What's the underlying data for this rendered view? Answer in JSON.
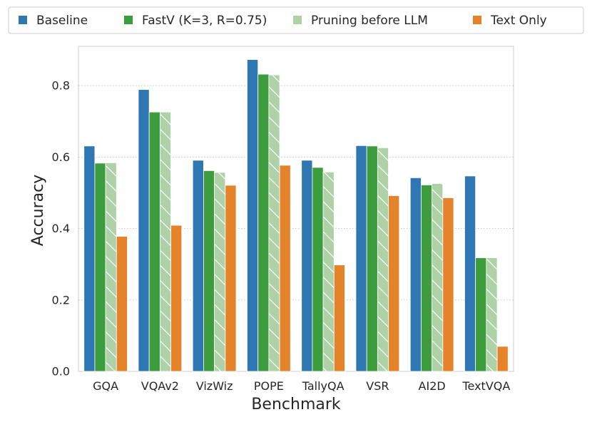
{
  "chart_data": {
    "type": "bar",
    "title": "",
    "xlabel": "Benchmark",
    "ylabel": "Accuracy",
    "ylim": [
      0,
      0.91
    ],
    "yticks": [
      0.0,
      0.2,
      0.4,
      0.6,
      0.8
    ],
    "ytick_labels": [
      "0.0",
      "0.2",
      "0.4",
      "0.6",
      "0.8"
    ],
    "grid": "y-dotted",
    "legend_position": "top",
    "categories": [
      "GQA",
      "VQAv2",
      "VizWiz",
      "POPE",
      "TallyQA",
      "VSR",
      "AI2D",
      "TextVQA"
    ],
    "series": [
      {
        "name": "Baseline",
        "legend_text": "Baseline",
        "color": "#2f77b3",
        "hatch": false,
        "values": [
          0.631,
          0.789,
          0.591,
          0.873,
          0.591,
          0.632,
          0.542,
          0.547
        ]
      },
      {
        "name": "FastV",
        "legend_text": "FastV (K=3, R=0.75)",
        "color": "#3c9c3e",
        "hatch": false,
        "values": [
          0.583,
          0.726,
          0.562,
          0.832,
          0.571,
          0.631,
          0.522,
          0.318
        ]
      },
      {
        "name": "Pruning before LLM",
        "legend_text": "Pruning before LLM",
        "color": "#aed1a8",
        "hatch": true,
        "values": [
          0.584,
          0.726,
          0.557,
          0.83,
          0.558,
          0.626,
          0.526,
          0.318
        ]
      },
      {
        "name": "Text Only",
        "legend_text": "Text Only",
        "color": "#e5832b",
        "hatch": false,
        "values": [
          0.378,
          0.409,
          0.521,
          0.577,
          0.298,
          0.492,
          0.486,
          0.07
        ]
      }
    ]
  }
}
